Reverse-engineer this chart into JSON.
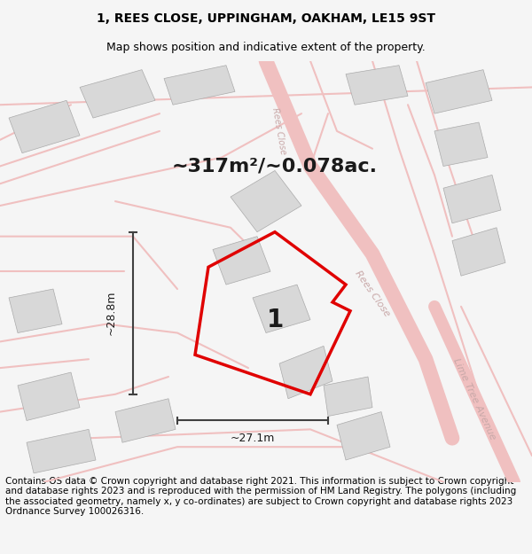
{
  "title_line1": "1, REES CLOSE, UPPINGHAM, OAKHAM, LE15 9ST",
  "title_line2": "Map shows position and indicative extent of the property.",
  "area_text": "~317m²/~0.078ac.",
  "label_number": "1",
  "dim_vertical": "~28.8m",
  "dim_horizontal": "~27.1m",
  "footer_text": "Contains OS data © Crown copyright and database right 2021. This information is subject to Crown copyright and database rights 2023 and is reproduced with the permission of HM Land Registry. The polygons (including the associated geometry, namely x, y co-ordinates) are subject to Crown copyright and database rights 2023 Ordnance Survey 100026316.",
  "bg_color": "#f5f5f5",
  "map_bg": "#ffffff",
  "title_fontsize": 10,
  "subtitle_fontsize": 9,
  "area_fontsize": 16,
  "footer_fontsize": 7.5,
  "red_color": "#e00000",
  "road_label_color": "#c8a8a8",
  "building_color": "#d8d8d8",
  "road_color": "#f0c0c0",
  "dim_line_color": "#404040"
}
